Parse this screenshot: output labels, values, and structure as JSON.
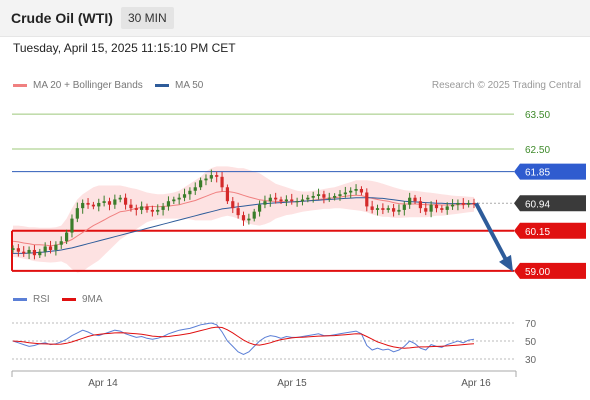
{
  "header": {
    "title": "Crude Oil (WTI)",
    "timeframe": "30 MIN",
    "datetime": "Tuesday, April 15, 2025 11:15:10 PM CET",
    "credit": "Research © 2025 Trading Central"
  },
  "legend_main": [
    {
      "label": "MA 20 + Bollinger Bands",
      "color": "#f08080"
    },
    {
      "label": "MA 50",
      "color": "#2e5c9a"
    }
  ],
  "legend_rsi": [
    {
      "label": "RSI",
      "color": "#5b7fd6"
    },
    {
      "label": "9MA",
      "color": "#e01010"
    }
  ],
  "colors": {
    "up": "#3a7d2a",
    "down": "#d42a2a",
    "key": "#e01010",
    "ma50": "#2e5c9a",
    "target": "#2e5c9a"
  },
  "chart_data": [
    {
      "type": "candlestick",
      "ylim": [
        58.45,
        64.05
      ],
      "x_ticks": [
        "Apr 14",
        "Apr 15",
        "Apr 16"
      ],
      "price_tags": [
        {
          "label": "63.50",
          "value": 63.5,
          "style": "green-line"
        },
        {
          "label": "62.50",
          "value": 62.5,
          "style": "green-line"
        },
        {
          "label": "61.85",
          "value": 61.85,
          "style": "blue-box"
        },
        {
          "label": "60.94",
          "value": 60.94,
          "style": "last-price"
        },
        {
          "label": "60.15",
          "value": 60.15,
          "style": "red-box"
        },
        {
          "label": "59.00",
          "value": 59.0,
          "style": "red-box"
        }
      ],
      "close": [
        59.65,
        59.55,
        59.5,
        59.6,
        59.45,
        59.55,
        59.7,
        59.6,
        59.75,
        59.85,
        60.1,
        60.5,
        60.8,
        60.95,
        60.9,
        60.85,
        60.95,
        61.0,
        60.9,
        61.05,
        61.1,
        60.9,
        60.8,
        60.75,
        60.85,
        60.75,
        60.7,
        60.75,
        60.85,
        61.0,
        61.05,
        61.1,
        61.2,
        61.3,
        61.4,
        61.6,
        61.65,
        61.75,
        61.7,
        61.4,
        61.0,
        60.8,
        60.6,
        60.45,
        60.5,
        60.7,
        60.9,
        61.0,
        61.1,
        61.05,
        61.0,
        61.05,
        61.0,
        61.0,
        61.05,
        61.1,
        61.15,
        61.2,
        61.1,
        61.1,
        61.15,
        61.2,
        61.25,
        61.3,
        61.35,
        61.25,
        60.85,
        60.75,
        60.8,
        60.75,
        60.8,
        60.7,
        60.75,
        60.9,
        61.1,
        61.0,
        60.8,
        60.7,
        60.9,
        60.8,
        60.75,
        60.85,
        60.9,
        60.95,
        60.9,
        60.95,
        60.94
      ],
      "ma20": [
        59.85,
        59.83,
        59.8,
        59.78,
        59.75,
        59.75,
        59.74,
        59.72,
        59.74,
        59.78,
        59.83,
        59.9,
        60.0,
        60.1,
        60.2,
        60.3,
        60.38,
        60.46,
        60.55,
        60.62,
        60.7,
        60.72,
        60.75,
        60.8,
        60.82,
        60.84,
        60.85,
        60.84,
        60.85,
        60.86,
        60.88,
        60.9,
        60.94,
        60.98,
        61.02,
        61.08,
        61.14,
        61.2,
        61.26,
        61.28,
        61.28,
        61.26,
        61.22,
        61.17,
        61.12,
        61.08,
        61.04,
        61.02,
        61.0,
        61.0,
        60.99,
        60.99,
        60.98,
        60.98,
        61.0,
        61.01,
        61.03,
        61.05,
        61.07,
        61.09,
        61.1,
        61.12,
        61.14,
        61.16,
        61.17,
        61.16,
        61.12,
        61.08,
        61.05,
        61.02,
        61.0,
        60.96,
        60.93,
        60.92,
        60.92,
        60.92,
        60.91,
        60.9,
        60.9,
        60.9,
        60.89,
        60.89,
        60.89,
        60.9,
        60.9,
        60.91,
        60.91
      ],
      "bb_upper": [
        60.3,
        60.3,
        60.28,
        60.25,
        60.25,
        60.24,
        60.24,
        60.24,
        60.25,
        60.3,
        60.5,
        60.8,
        61.05,
        61.2,
        61.3,
        61.4,
        61.45,
        61.45,
        61.45,
        61.45,
        61.45,
        61.42,
        61.38,
        61.35,
        61.3,
        61.25,
        61.22,
        61.2,
        61.2,
        61.22,
        61.25,
        61.3,
        61.4,
        61.5,
        61.6,
        61.7,
        61.85,
        61.95,
        62.0,
        62.0,
        62.0,
        61.98,
        61.95,
        61.95,
        61.9,
        61.85,
        61.8,
        61.7,
        61.6,
        61.5,
        61.45,
        61.4,
        61.35,
        61.3,
        61.28,
        61.28,
        61.3,
        61.32,
        61.35,
        61.38,
        61.4,
        61.45,
        61.5,
        61.55,
        61.6,
        61.6,
        61.6,
        61.58,
        61.55,
        61.5,
        61.45,
        61.4,
        61.36,
        61.32,
        61.3,
        61.3,
        61.28,
        61.26,
        61.24,
        61.22,
        61.2,
        61.18,
        61.16,
        61.15,
        61.14,
        61.13,
        61.12
      ],
      "bb_lower": [
        59.4,
        59.38,
        59.35,
        59.32,
        59.28,
        59.26,
        59.25,
        59.24,
        59.25,
        59.27,
        59.2,
        59.05,
        58.95,
        58.98,
        59.1,
        59.2,
        59.3,
        59.45,
        59.6,
        59.75,
        59.9,
        60.0,
        60.1,
        60.2,
        60.3,
        60.4,
        60.45,
        60.48,
        60.5,
        60.5,
        60.5,
        60.5,
        60.5,
        60.48,
        60.45,
        60.45,
        60.45,
        60.45,
        60.5,
        60.55,
        60.58,
        60.55,
        60.5,
        60.42,
        60.35,
        60.32,
        60.3,
        60.34,
        60.4,
        60.5,
        60.55,
        60.6,
        60.62,
        60.66,
        60.7,
        60.72,
        60.74,
        60.76,
        60.78,
        60.78,
        60.8,
        60.8,
        60.78,
        60.76,
        60.74,
        60.72,
        60.68,
        60.62,
        60.58,
        60.55,
        60.55,
        60.52,
        60.52,
        60.53,
        60.54,
        60.54,
        60.54,
        60.54,
        60.56,
        60.58,
        60.58,
        60.6,
        60.62,
        60.64,
        60.66,
        60.68,
        60.7
      ],
      "ma50": [
        59.5,
        59.5,
        59.5,
        59.51,
        59.52,
        59.53,
        59.54,
        59.56,
        59.58,
        59.6,
        59.63,
        59.66,
        59.7,
        59.74,
        59.78,
        59.82,
        59.86,
        59.9,
        59.94,
        59.98,
        60.02,
        60.06,
        60.1,
        60.14,
        60.18,
        60.22,
        60.26,
        60.3,
        60.34,
        60.38,
        60.42,
        60.46,
        60.5,
        60.54,
        60.58,
        60.62,
        60.66,
        60.7,
        60.74,
        60.78,
        60.8,
        60.82,
        60.84,
        60.86,
        60.88,
        60.9,
        60.92,
        60.93,
        60.94,
        60.95,
        60.96,
        60.97,
        60.98,
        60.99,
        61.0,
        61.01,
        61.02,
        61.03,
        61.04,
        61.05,
        61.06,
        61.07,
        61.08,
        61.09,
        61.1,
        61.1,
        61.1,
        61.1,
        61.09,
        61.08,
        61.06,
        61.04,
        61.02,
        61.0,
        60.99,
        60.98,
        60.97,
        60.96,
        60.95,
        60.94,
        60.94,
        60.93,
        60.93,
        60.93,
        60.93,
        60.93,
        60.93
      ],
      "forecast": {
        "from": 60.94,
        "to": 59.0
      }
    },
    {
      "type": "line",
      "title": "RSI",
      "ylim": [
        20,
        80
      ],
      "y_ticks": [
        70,
        50,
        30
      ],
      "series": [
        {
          "name": "RSI",
          "values": [
            50,
            48,
            46,
            44,
            45,
            47,
            48,
            46,
            47,
            49,
            52,
            56,
            59,
            62,
            60,
            57,
            56,
            58,
            60,
            62,
            61,
            58,
            56,
            54,
            55,
            53,
            52,
            53,
            55,
            58,
            60,
            62,
            63,
            64,
            66,
            68,
            69,
            70,
            68,
            60,
            50,
            44,
            38,
            35,
            38,
            44,
            50,
            54,
            56,
            55,
            53,
            55,
            54,
            54,
            55,
            56,
            57,
            58,
            56,
            56,
            57,
            58,
            59,
            60,
            61,
            58,
            45,
            40,
            42,
            40,
            41,
            38,
            40,
            44,
            50,
            47,
            42,
            40,
            46,
            44,
            43,
            46,
            48,
            50,
            48,
            51,
            52
          ]
        },
        {
          "name": "9MA",
          "values": [
            50,
            49.5,
            49,
            48,
            47.5,
            47,
            46.8,
            46.5,
            46.4,
            46.6,
            47.5,
            49,
            51,
            53,
            55,
            56.5,
            57.3,
            58,
            58.5,
            59,
            59.2,
            59,
            58.5,
            58,
            57.5,
            56.6,
            55.5,
            55,
            54.8,
            55,
            55.8,
            56.5,
            57.5,
            58.5,
            60,
            61.5,
            63,
            64.5,
            65.5,
            65,
            62.5,
            59,
            55,
            51,
            48,
            46,
            45.5,
            46.5,
            48,
            50,
            51.5,
            52.5,
            53.5,
            54,
            54.2,
            54.5,
            55,
            55.5,
            55.6,
            55.8,
            56,
            56.5,
            57,
            57.5,
            58,
            57.8,
            55,
            52,
            49,
            47,
            45,
            43.5,
            42.5,
            42,
            42.3,
            43,
            43.4,
            43.5,
            43.8,
            44,
            44.2,
            44.6,
            45,
            45.5,
            46,
            46.5,
            47
          ]
        }
      ]
    }
  ]
}
